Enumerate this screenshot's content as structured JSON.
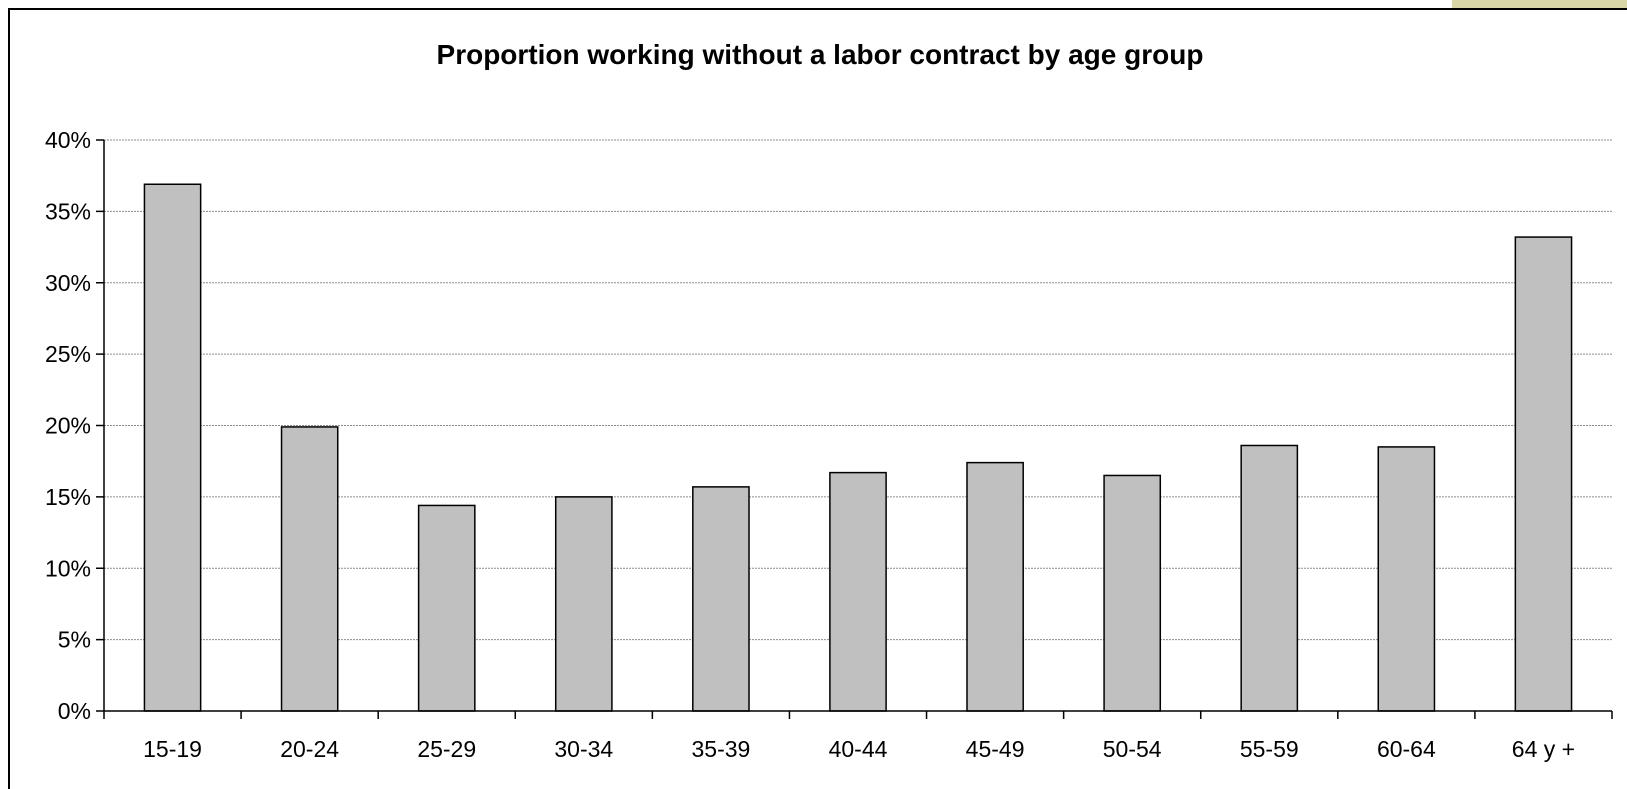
{
  "chart_data": {
    "type": "bar",
    "title": "Proportion working without a labor contract by age group",
    "xlabel": "",
    "ylabel": "",
    "categories": [
      "15-19",
      "20-24",
      "25-29",
      "30-34",
      "35-39",
      "40-44",
      "45-49",
      "50-54",
      "55-59",
      "60-64",
      "64 y +"
    ],
    "values": [
      36.9,
      19.9,
      14.4,
      15.0,
      15.7,
      16.7,
      17.4,
      16.5,
      18.6,
      18.5,
      33.2
    ],
    "ylim": [
      0,
      40
    ],
    "yticks": [
      0,
      5,
      10,
      15,
      20,
      25,
      30,
      35,
      40
    ],
    "ytick_labels": [
      "0%",
      "5%",
      "10%",
      "15%",
      "20%",
      "25%",
      "30%",
      "35%",
      "40%"
    ],
    "grid": true,
    "legend": "none",
    "colors": {
      "bar_fill": "#c0c0c0",
      "bar_stroke": "#000000",
      "grid": "#8c8c8c",
      "axis": "#000000"
    }
  }
}
